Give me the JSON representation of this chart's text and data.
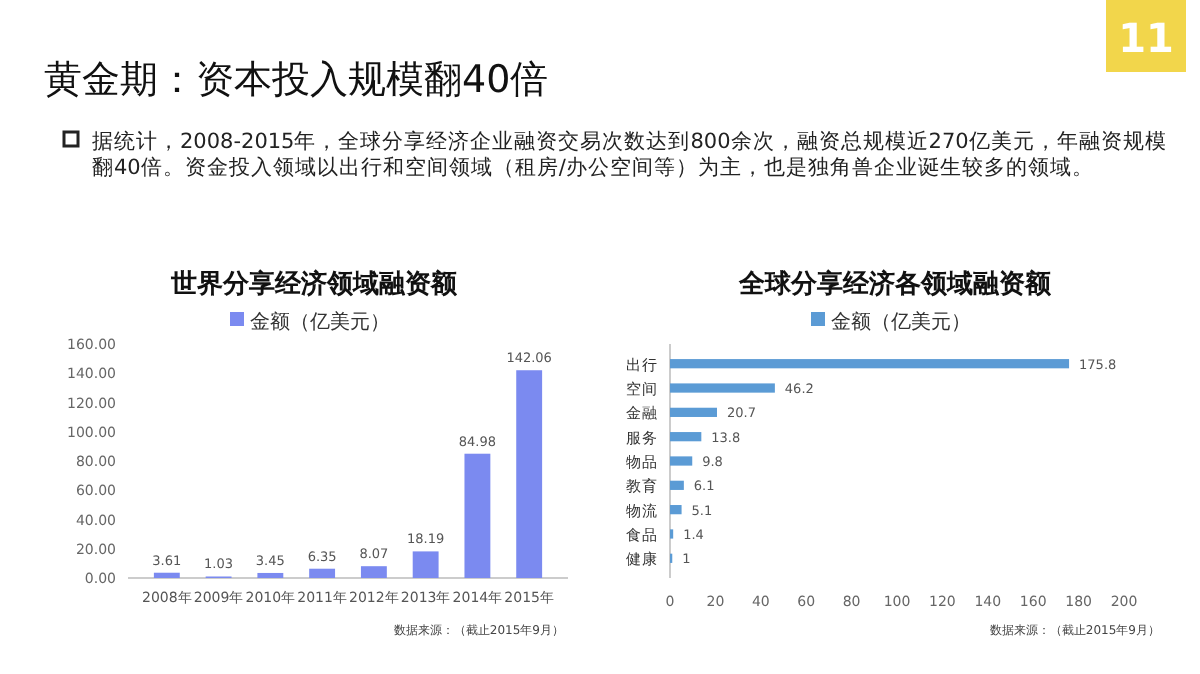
{
  "chart_data": [
    {
      "type": "other",
      "title": "黄金期：资本投入规模翻40倍",
      "annotations": [
        "据统计，2008-2015年，全球分享经济企业融资交易次数达到800余次，融资总规模近270亿美元，年融资规模翻40倍。资金投入领域以出行和空间领域（租房/办公空间等）为主，也是独角兽企业诞生较多的领域。",
        "11"
      ]
    },
    {
      "type": "bar",
      "title": "世界分享经济领域融资额",
      "categories": [
        "2008年",
        "2009年",
        "2010年",
        "2011年",
        "2012年",
        "2013年",
        "2014年",
        "2015年"
      ],
      "series": [
        {
          "name": "金额（亿美元）",
          "color": "#7b8af0",
          "values": [
            3.61,
            1.03,
            3.45,
            6.35,
            8.07,
            18.19,
            84.98,
            142.06
          ]
        }
      ],
      "ylim": [
        0,
        160
      ],
      "yticks": [
        {
          "value": 0,
          "label": "0.00"
        },
        {
          "value": 20,
          "label": "20.00"
        },
        {
          "value": 40,
          "label": "40.00"
        },
        {
          "value": 60,
          "label": "60.00"
        },
        {
          "value": 80,
          "label": "80.00"
        },
        {
          "value": 100,
          "label": "100.00"
        },
        {
          "value": 120,
          "label": "120.00"
        },
        {
          "value": 140,
          "label": "140.00"
        },
        {
          "value": 160,
          "label": "160.00"
        }
      ],
      "data_labels": true,
      "legend": "top",
      "grid": false,
      "annotations": [
        "数据来源：（截止2015年9月）"
      ]
    },
    {
      "type": "bar",
      "orientation": "horizontal",
      "title": "全球分享经济各领域融资额",
      "categories": [
        "出行",
        "空间",
        "金融",
        "服务",
        "物品",
        "教育",
        "物流",
        "食品",
        "健康"
      ],
      "series": [
        {
          "name": "金额（亿美元）",
          "color": "#5b9bd5",
          "values": [
            175.8,
            46.2,
            20.7,
            13.8,
            9.8,
            6.1,
            5.1,
            1.4,
            1
          ]
        }
      ],
      "xlim": [
        0,
        200
      ],
      "xticks": [
        0,
        20,
        40,
        60,
        80,
        100,
        120,
        140,
        160,
        180,
        200
      ],
      "data_labels": true,
      "legend": "top",
      "grid": false,
      "annotations": [
        "数据来源：（截止2015年9月）"
      ]
    }
  ]
}
